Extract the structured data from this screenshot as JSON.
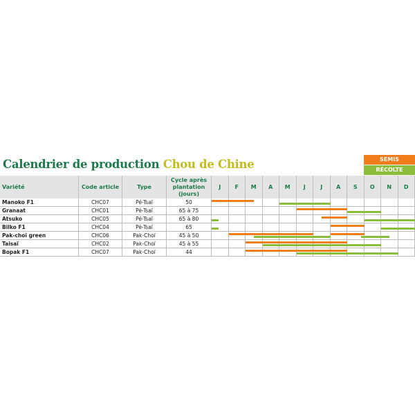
{
  "title": {
    "part1": "Calendrier de production ",
    "part2": "Chou de Chine"
  },
  "legend": {
    "sow_label": "SEMIS",
    "harvest_label": "RÉCOLTE"
  },
  "colors": {
    "title_green": "#1c7b4a",
    "title_yellow": "#c3bd1c",
    "sow": "#ee7d1a",
    "harvest": "#8cbe3b",
    "header_bg": "#e4e4e4"
  },
  "headers": {
    "variety": "Variété",
    "code": "Code article",
    "type": "Type",
    "cycle": "Cycle après plantation (jours)"
  },
  "months": [
    "J",
    "F",
    "M",
    "A",
    "M",
    "J",
    "J",
    "A",
    "S",
    "O",
    "N",
    "D"
  ],
  "rows": [
    {
      "name": "Manoko F1",
      "code": "CHC07",
      "type": "Pé-Tsaï",
      "cycle": "50",
      "sow": [
        [
          0,
          2.5
        ]
      ],
      "harvest": [
        [
          4,
          7
        ]
      ]
    },
    {
      "name": "Granaat",
      "code": "CHC01",
      "type": "Pé-Tsaï",
      "cycle": "65 à 75",
      "sow": [
        [
          5,
          8
        ]
      ],
      "harvest": [
        [
          8,
          10
        ]
      ]
    },
    {
      "name": "Atsuko",
      "code": "CHC05",
      "type": "Pé-Tsaï",
      "cycle": "65 à 80",
      "sow": [
        [
          6.5,
          8
        ]
      ],
      "harvest": [
        [
          0,
          0.4
        ],
        [
          9,
          12
        ]
      ]
    },
    {
      "name": "Bilko F1",
      "code": "CHC04",
      "type": "Pé-Tsaï",
      "cycle": "65",
      "sow": [
        [
          7,
          9
        ]
      ],
      "harvest": [
        [
          0,
          0.4
        ],
        [
          10,
          12
        ]
      ]
    },
    {
      "name": "Pak-choï green",
      "code": "CHC06",
      "type": "Pak-Choï",
      "cycle": "45 à 50",
      "sow": [
        [
          1,
          6
        ],
        [
          7,
          9
        ]
      ],
      "harvest": [
        [
          2.5,
          7
        ],
        [
          8.8,
          10.5
        ]
      ]
    },
    {
      "name": "Taisaï",
      "code": "CHC02",
      "type": "Pak-Choï",
      "cycle": "45 à 55",
      "sow": [
        [
          2,
          8
        ]
      ],
      "harvest": [
        [
          3,
          10
        ]
      ]
    },
    {
      "name": "Bopak F1",
      "code": "CHC07",
      "type": "Pak-Choï",
      "cycle": "44",
      "sow": [
        [
          2,
          8
        ]
      ],
      "harvest": [
        [
          5,
          11
        ]
      ]
    }
  ]
}
